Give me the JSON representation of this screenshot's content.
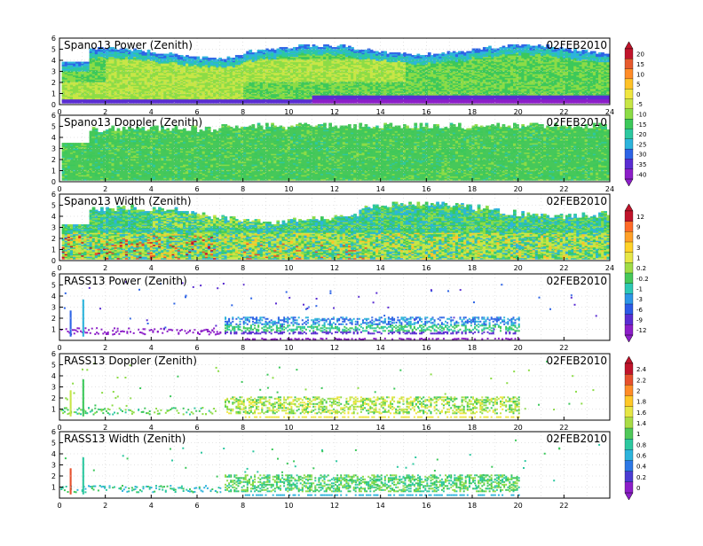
{
  "chart_data": [
    {
      "type": "heatmap",
      "title": "Spano13 Power (Zenith)",
      "date": "02FEB2010",
      "xlim": [
        0,
        24
      ],
      "ylim": [
        0,
        6
      ],
      "xticks": [
        "0",
        "2",
        "4",
        "6",
        "8",
        "10",
        "12",
        "14",
        "16",
        "18",
        "20",
        "22",
        "24"
      ],
      "yticks": [
        "0",
        "1",
        "2",
        "3",
        "4",
        "5",
        "6"
      ],
      "colorbar": {
        "labels": [
          "20",
          "15",
          "10",
          "5",
          "0",
          "-5",
          "-10",
          "-15",
          "-20",
          "-25",
          "-30",
          "-35",
          "-40"
        ],
        "colors": [
          "#c0142b",
          "#e65a2e",
          "#ff8c28",
          "#ffc228",
          "#f0e640",
          "#c8e646",
          "#8cdc46",
          "#3cc85a",
          "#2dc8a0",
          "#2db4dc",
          "#2d64e6",
          "#5a2dd2",
          "#8c1ec8"
        ]
      },
      "description_levels": {
        "near_surface_band": "violet/purple at 0.3-0.8 km after 12 h",
        "mid_levels": "yellow-green 1-4 km",
        "top": "cyan/blue near 4-5 km"
      }
    },
    {
      "type": "heatmap",
      "title": "Spano13 Doppler (Zenith)",
      "date": "02FEB2010",
      "xlim": [
        0,
        24
      ],
      "ylim": [
        0,
        6
      ],
      "xticks": [
        "0",
        "2",
        "4",
        "6",
        "8",
        "10",
        "12",
        "14",
        "16",
        "18",
        "20",
        "22",
        "24"
      ],
      "yticks": [
        "0",
        "1",
        "2",
        "3",
        "4",
        "5",
        "6"
      ]
    },
    {
      "type": "heatmap",
      "title": "Spano13 Width (Zenith)",
      "date": "02FEB2010",
      "xlim": [
        0,
        24
      ],
      "ylim": [
        0,
        6
      ],
      "xticks": [
        "0",
        "2",
        "4",
        "6",
        "8",
        "10",
        "12",
        "14",
        "16",
        "18",
        "20",
        "22",
        "24"
      ],
      "yticks": [
        "0",
        "1",
        "2",
        "3",
        "4",
        "5",
        "6"
      ],
      "colorbar": {
        "labels": [
          "12",
          "9",
          "6",
          "3",
          "1",
          "0.2",
          "-0.2",
          "-1",
          "-3",
          "-6",
          "-9",
          "-12"
        ],
        "colors": [
          "#c0142b",
          "#ff6a28",
          "#ffa028",
          "#ffd228",
          "#e6e646",
          "#a0dc46",
          "#46c85a",
          "#2dc8b4",
          "#2d96e6",
          "#2d5ae6",
          "#5a2dd2",
          "#8c1ec8"
        ]
      }
    },
    {
      "type": "scatter",
      "title": "RASS13 Power (Zenith)",
      "date": "02FEB2010",
      "xlim": [
        0,
        24
      ],
      "ylim": [
        0,
        6
      ],
      "xticks": [
        "0",
        "2",
        "4",
        "6",
        "8",
        "10",
        "12",
        "14",
        "16",
        "18",
        "20",
        "22"
      ],
      "yticks": [
        "1",
        "2",
        "3",
        "4",
        "5",
        "6"
      ]
    },
    {
      "type": "scatter",
      "title": "RASS13 Doppler (Zenith)",
      "date": "02FEB2010",
      "xlim": [
        0,
        24
      ],
      "ylim": [
        0,
        6
      ],
      "xticks": [
        "0",
        "2",
        "4",
        "6",
        "8",
        "10",
        "12",
        "14",
        "16",
        "18",
        "20",
        "22"
      ],
      "yticks": [
        "1",
        "2",
        "3",
        "4",
        "5",
        "6"
      ],
      "colorbar": {
        "labels": [
          "2.4",
          "2.2",
          "2",
          "1.8",
          "1.6",
          "1.4",
          "1",
          "0.8",
          "0.6",
          "0.4",
          "0.2",
          "0"
        ],
        "colors": [
          "#c0142b",
          "#e6502d",
          "#ff8c28",
          "#ffc828",
          "#e6e646",
          "#aadc46",
          "#50c85a",
          "#2dc8a0",
          "#2db4dc",
          "#2d78e6",
          "#4b3cd2",
          "#8c1ec8"
        ]
      }
    },
    {
      "type": "scatter",
      "title": "RASS13 Width (Zenith)",
      "date": "02FEB2010",
      "xlim": [
        0,
        24
      ],
      "ylim": [
        0,
        6
      ],
      "xticks": [
        "0",
        "2",
        "4",
        "6",
        "8",
        "10",
        "12",
        "14",
        "16",
        "18",
        "20",
        "22"
      ],
      "yticks": [
        "1",
        "2",
        "3",
        "4",
        "5",
        "6"
      ]
    }
  ]
}
